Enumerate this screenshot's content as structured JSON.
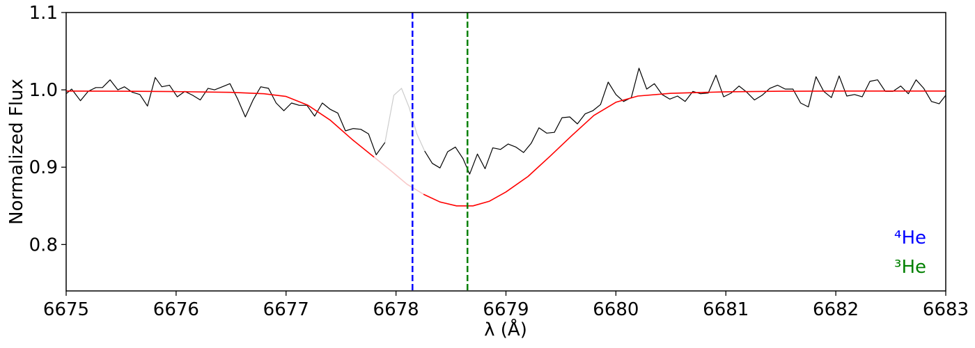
{
  "chart_data": {
    "type": "line",
    "title": "",
    "xlabel": "λ (Å)",
    "ylabel": "Normalized Flux",
    "xlim": [
      6675,
      6683
    ],
    "ylim": [
      0.74,
      1.1
    ],
    "x_ticks": [
      "6675",
      "6676",
      "6677",
      "6678",
      "6679",
      "6680",
      "6681",
      "6682",
      "6683"
    ],
    "y_ticks": [
      "0.8",
      "0.9",
      "1.0",
      "1.1"
    ],
    "grid": false,
    "masked_region": [
      6677.92,
      6678.28
    ],
    "series": [
      {
        "name": "",
        "role": "observed",
        "color": "#000000",
        "masked_color": "#cccccc",
        "points": [
          [
            6675.0,
            0.995
          ],
          [
            6675.05,
            1.001
          ],
          [
            6675.13,
            0.986
          ],
          [
            6675.2,
            0.998
          ],
          [
            6675.27,
            1.003
          ],
          [
            6675.33,
            1.003
          ],
          [
            6675.4,
            1.013
          ],
          [
            6675.47,
            1.0
          ],
          [
            6675.53,
            1.004
          ],
          [
            6675.6,
            0.997
          ],
          [
            6675.67,
            0.994
          ],
          [
            6675.74,
            0.979
          ],
          [
            6675.81,
            1.016
          ],
          [
            6675.87,
            1.004
          ],
          [
            6675.94,
            1.006
          ],
          [
            6676.01,
            0.991
          ],
          [
            6676.08,
            0.998
          ],
          [
            6676.15,
            0.993
          ],
          [
            6676.22,
            0.987
          ],
          [
            6676.29,
            1.002
          ],
          [
            6676.35,
            1.0
          ],
          [
            6676.42,
            1.004
          ],
          [
            6676.49,
            1.008
          ],
          [
            6676.56,
            0.988
          ],
          [
            6676.63,
            0.965
          ],
          [
            6676.7,
            0.987
          ],
          [
            6676.77,
            1.004
          ],
          [
            6676.84,
            1.002
          ],
          [
            6676.91,
            0.983
          ],
          [
            6676.98,
            0.973
          ],
          [
            6677.05,
            0.983
          ],
          [
            6677.12,
            0.98
          ],
          [
            6677.19,
            0.98
          ],
          [
            6677.26,
            0.966
          ],
          [
            6677.33,
            0.983
          ],
          [
            6677.4,
            0.975
          ],
          [
            6677.47,
            0.97
          ],
          [
            6677.54,
            0.947
          ],
          [
            6677.61,
            0.95
          ],
          [
            6677.68,
            0.949
          ],
          [
            6677.75,
            0.943
          ],
          [
            6677.82,
            0.916
          ],
          [
            6677.9,
            0.932
          ],
          [
            6677.98,
            0.993
          ],
          [
            6678.05,
            1.002
          ],
          [
            6678.12,
            0.977
          ],
          [
            6678.19,
            0.943
          ],
          [
            6678.26,
            0.921
          ],
          [
            6678.33,
            0.905
          ],
          [
            6678.4,
            0.899
          ],
          [
            6678.47,
            0.92
          ],
          [
            6678.54,
            0.926
          ],
          [
            6678.61,
            0.911
          ],
          [
            6678.67,
            0.891
          ],
          [
            6678.74,
            0.917
          ],
          [
            6678.81,
            0.898
          ],
          [
            6678.88,
            0.925
          ],
          [
            6678.95,
            0.923
          ],
          [
            6679.02,
            0.93
          ],
          [
            6679.09,
            0.926
          ],
          [
            6679.16,
            0.919
          ],
          [
            6679.23,
            0.931
          ],
          [
            6679.3,
            0.951
          ],
          [
            6679.37,
            0.944
          ],
          [
            6679.44,
            0.945
          ],
          [
            6679.51,
            0.964
          ],
          [
            6679.58,
            0.965
          ],
          [
            6679.65,
            0.956
          ],
          [
            6679.72,
            0.969
          ],
          [
            6679.79,
            0.973
          ],
          [
            6679.86,
            0.981
          ],
          [
            6679.93,
            1.01
          ],
          [
            6680.0,
            0.994
          ],
          [
            6680.07,
            0.985
          ],
          [
            6680.14,
            0.99
          ],
          [
            6680.21,
            1.028
          ],
          [
            6680.28,
            1.001
          ],
          [
            6680.35,
            1.008
          ],
          [
            6680.42,
            0.994
          ],
          [
            6680.49,
            0.988
          ],
          [
            6680.56,
            0.992
          ],
          [
            6680.63,
            0.985
          ],
          [
            6680.7,
            0.998
          ],
          [
            6680.77,
            0.995
          ],
          [
            6680.84,
            0.996
          ],
          [
            6680.91,
            1.019
          ],
          [
            6680.98,
            0.991
          ],
          [
            6681.05,
            0.996
          ],
          [
            6681.12,
            1.005
          ],
          [
            6681.19,
            0.997
          ],
          [
            6681.26,
            0.987
          ],
          [
            6681.33,
            0.993
          ],
          [
            6681.4,
            1.002
          ],
          [
            6681.47,
            1.006
          ],
          [
            6681.54,
            1.001
          ],
          [
            6681.61,
            1.001
          ],
          [
            6681.68,
            0.983
          ],
          [
            6681.75,
            0.978
          ],
          [
            6681.82,
            1.017
          ],
          [
            6681.89,
            0.998
          ],
          [
            6681.96,
            0.99
          ],
          [
            6682.03,
            1.018
          ],
          [
            6682.1,
            0.992
          ],
          [
            6682.17,
            0.994
          ],
          [
            6682.24,
            0.991
          ],
          [
            6682.31,
            1.011
          ],
          [
            6682.38,
            1.013
          ],
          [
            6682.45,
            0.998
          ],
          [
            6682.52,
            0.998
          ],
          [
            6682.59,
            1.005
          ],
          [
            6682.66,
            0.995
          ],
          [
            6682.73,
            1.013
          ],
          [
            6682.8,
            1.002
          ],
          [
            6682.87,
            0.985
          ],
          [
            6682.94,
            0.982
          ],
          [
            6683.0,
            0.993
          ]
        ]
      },
      {
        "name": "",
        "role": "model",
        "color": "#ff0000",
        "masked_color": "#f8c8c8",
        "points": [
          [
            6675.0,
            0.9985
          ],
          [
            6675.5,
            0.9982
          ],
          [
            6676.0,
            0.9978
          ],
          [
            6676.5,
            0.9968
          ],
          [
            6676.8,
            0.995
          ],
          [
            6677.0,
            0.9915
          ],
          [
            6677.2,
            0.98
          ],
          [
            6677.4,
            0.961
          ],
          [
            6677.6,
            0.936
          ],
          [
            6677.8,
            0.913
          ],
          [
            6677.95,
            0.896
          ],
          [
            6678.1,
            0.878
          ],
          [
            6678.25,
            0.865
          ],
          [
            6678.4,
            0.855
          ],
          [
            6678.55,
            0.85
          ],
          [
            6678.7,
            0.85
          ],
          [
            6678.85,
            0.856
          ],
          [
            6679.0,
            0.868
          ],
          [
            6679.2,
            0.888
          ],
          [
            6679.4,
            0.914
          ],
          [
            6679.6,
            0.941
          ],
          [
            6679.8,
            0.967
          ],
          [
            6680.0,
            0.984
          ],
          [
            6680.2,
            0.992
          ],
          [
            6680.5,
            0.9955
          ],
          [
            6681.0,
            0.9975
          ],
          [
            6681.5,
            0.9982
          ],
          [
            6682.0,
            0.9985
          ],
          [
            6682.5,
            0.9985
          ],
          [
            6683.0,
            0.9985
          ]
        ]
      }
    ],
    "markers": [
      {
        "label": "⁴He",
        "x": 6678.15,
        "color": "#0000ff"
      },
      {
        "label": "³He",
        "x": 6678.65,
        "color": "#008000"
      }
    ],
    "legend_position": "bottom-right"
  }
}
